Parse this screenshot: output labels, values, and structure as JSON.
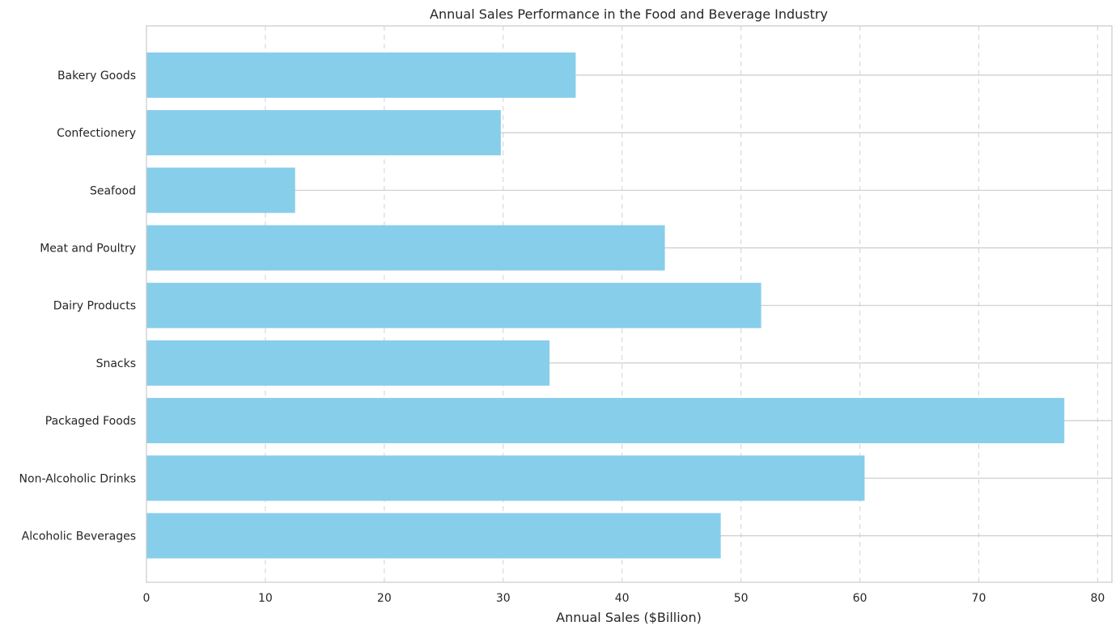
{
  "chart_data": {
    "type": "bar",
    "orientation": "horizontal",
    "title": "Annual Sales Performance in the Food and Beverage Industry",
    "xlabel": "Annual Sales ($Billion)",
    "ylabel": "",
    "xlim": [
      0,
      81.2
    ],
    "x_ticks": [
      0,
      10,
      20,
      30,
      40,
      50,
      60,
      70,
      80
    ],
    "categories": [
      "Alcoholic Beverages",
      "Non-Alcoholic Drinks",
      "Packaged Foods",
      "Snacks",
      "Dairy Products",
      "Meat and Poultry",
      "Seafood",
      "Confectionery",
      "Bakery Goods"
    ],
    "values": [
      48.3,
      60.4,
      77.2,
      33.9,
      51.7,
      43.6,
      12.5,
      29.8,
      36.1
    ],
    "bar_color": "#87CEEB",
    "grid": {
      "vertical": "dashed",
      "horizontal": "solid"
    },
    "legend": "none"
  }
}
